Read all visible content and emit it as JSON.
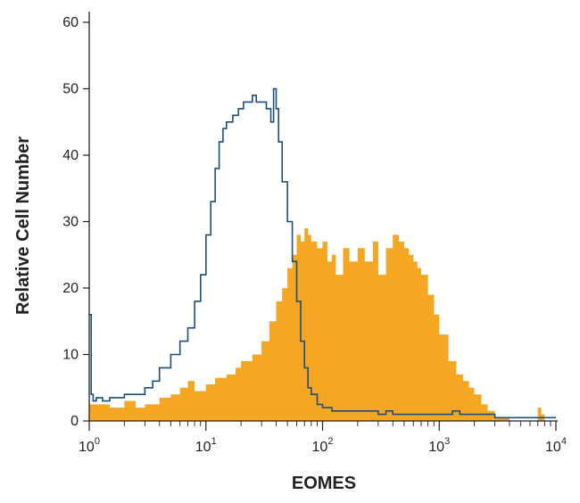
{
  "chart_data": {
    "type": "area",
    "title": "",
    "xlabel": "EOMES",
    "ylabel": "Relative Cell Number",
    "x_scale": "log",
    "xlim": [
      1,
      10000
    ],
    "ylim": [
      0,
      60
    ],
    "grid": false,
    "x_ticks": [
      {
        "base": "10",
        "exp": "0",
        "value": 1
      },
      {
        "base": "10",
        "exp": "1",
        "value": 10
      },
      {
        "base": "10",
        "exp": "2",
        "value": 100
      },
      {
        "base": "10",
        "exp": "3",
        "value": 1000
      },
      {
        "base": "10",
        "exp": "4",
        "value": 10000
      }
    ],
    "y_ticks": [
      "0",
      "10",
      "20",
      "30",
      "40",
      "50",
      "60"
    ],
    "series": [
      {
        "style": "filled",
        "color": "#f5a623",
        "x": [
          1,
          1.2,
          1.5,
          2,
          2.5,
          3,
          4,
          5,
          6,
          7,
          8,
          10,
          12,
          15,
          18,
          20,
          25,
          30,
          35,
          40,
          45,
          50,
          55,
          60,
          65,
          70,
          75,
          80,
          90,
          100,
          110,
          120,
          130,
          150,
          170,
          200,
          230,
          270,
          300,
          350,
          400,
          450,
          500,
          550,
          600,
          650,
          700,
          800,
          900,
          1000,
          1200,
          1400,
          1600,
          1800,
          2000,
          2300,
          2600,
          3000,
          4000,
          5000,
          6000,
          7000,
          7500,
          8000
        ],
        "y": [
          2.5,
          2.5,
          2,
          3,
          2,
          2.5,
          3.5,
          4,
          5,
          6,
          4.5,
          5.5,
          6.5,
          7,
          8,
          9,
          10,
          12,
          15,
          18,
          20,
          23,
          25,
          28,
          27,
          29,
          28,
          27,
          26,
          27,
          24,
          25,
          22,
          26,
          24,
          26,
          24,
          27,
          22,
          26,
          28,
          27,
          26,
          25,
          24,
          23,
          22,
          19,
          16,
          13,
          9,
          7,
          6,
          5,
          4,
          2.5,
          1.5,
          0.5,
          0,
          0,
          0,
          2,
          1,
          0
        ]
      },
      {
        "style": "outline",
        "color": "#1c4f7a",
        "x": [
          1,
          1.04,
          1.08,
          1.15,
          1.3,
          1.5,
          1.8,
          2,
          2.5,
          3,
          3.5,
          4,
          5,
          6,
          7,
          8,
          9,
          10,
          11,
          12,
          13,
          14,
          15,
          17,
          19,
          21,
          23,
          25,
          27,
          30,
          33,
          36,
          38,
          40,
          42,
          45,
          50,
          55,
          60,
          65,
          70,
          75,
          80,
          90,
          100,
          120,
          150,
          200,
          250,
          300,
          350,
          400,
          500,
          700,
          1000,
          1300,
          1500,
          2000,
          3000,
          5000,
          7000,
          10000
        ],
        "y": [
          16,
          4,
          3,
          3.5,
          3,
          3.5,
          3.5,
          4,
          4,
          5,
          6,
          8,
          10,
          12,
          14,
          18,
          22,
          28,
          33,
          38,
          42,
          44,
          45,
          46,
          47,
          48,
          48,
          49,
          48,
          48,
          47,
          45,
          50,
          47,
          42,
          36,
          30,
          24,
          18,
          12,
          8,
          5,
          4,
          2.5,
          2,
          1.5,
          1.5,
          1.5,
          1.5,
          1,
          1.5,
          1,
          1,
          1,
          1,
          1.5,
          1,
          1,
          0.5,
          0.5,
          0.5,
          0.5
        ]
      }
    ]
  }
}
